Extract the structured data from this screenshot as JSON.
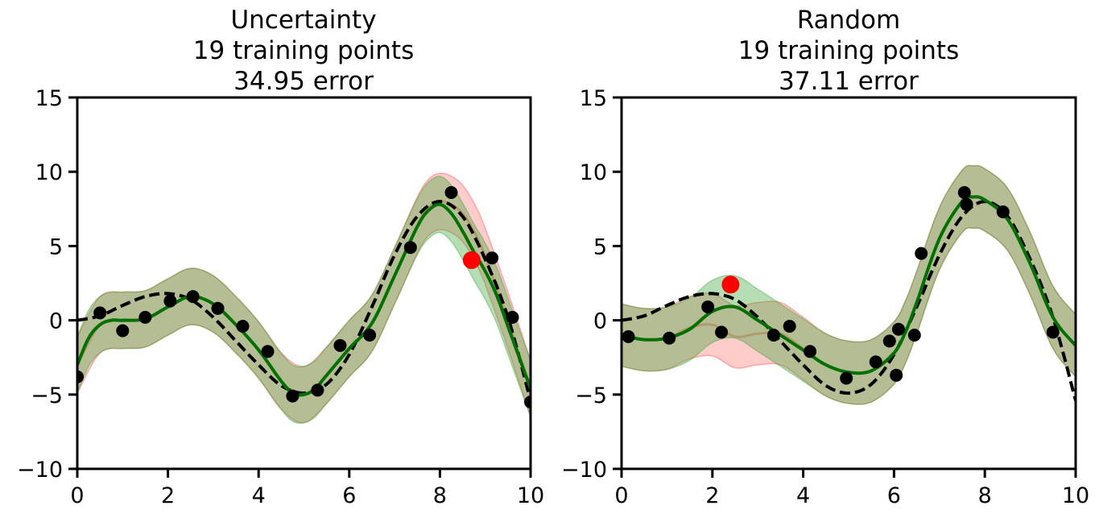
{
  "chart_data": [
    {
      "type": "line",
      "title": [
        "Uncertainty",
        "19 training points",
        "34.95 error"
      ],
      "xlim": [
        0,
        10
      ],
      "ylim": [
        -10,
        15
      ],
      "xticks": [
        0,
        2,
        4,
        6,
        8,
        10
      ],
      "yticks": [
        -10,
        -5,
        0,
        5,
        10,
        15
      ],
      "xtick_labels": [
        "0",
        "2",
        "4",
        "6",
        "8",
        "10"
      ],
      "ytick_labels": [
        "−10",
        "−5",
        "0",
        "5",
        "10",
        "15"
      ],
      "true_function": {
        "x": [
          0,
          0.5,
          1,
          1.5,
          2,
          2.5,
          3,
          3.5,
          4,
          4.5,
          5,
          5.5,
          6,
          6.5,
          7,
          7.5,
          8,
          8.5,
          9,
          9.5,
          10
        ],
        "y": [
          0,
          0.3,
          1.0,
          1.6,
          1.8,
          1.4,
          0.2,
          -1.4,
          -3.0,
          -4.4,
          -4.9,
          -4.3,
          -2.3,
          0.9,
          4.4,
          7.0,
          8.0,
          7.0,
          4.1,
          0.2,
          -5.4
        ]
      },
      "mean_current": {
        "x": [
          0,
          0.25,
          0.5,
          0.75,
          1,
          1.5,
          2,
          2.5,
          3,
          3.5,
          4,
          4.5,
          4.75,
          5,
          5.25,
          5.5,
          6,
          6.5,
          7,
          7.5,
          7.75,
          8,
          8.25,
          8.5,
          8.75,
          9,
          9.25,
          9.5,
          9.75,
          10
        ],
        "y": [
          -3.0,
          -1.2,
          -0.3,
          0.0,
          0.0,
          0.1,
          0.9,
          1.6,
          1.1,
          -0.3,
          -2.0,
          -4.1,
          -4.9,
          -5.0,
          -4.6,
          -3.7,
          -1.9,
          -0.2,
          3.0,
          6.3,
          7.4,
          7.8,
          7.2,
          6.0,
          4.6,
          3.3,
          1.7,
          -0.4,
          -2.5,
          -4.6
        ]
      },
      "band_current_halfwidth": 1.9,
      "mean_previous": {
        "x": [
          0,
          0.5,
          1,
          1.5,
          2,
          2.5,
          3,
          3.5,
          4,
          4.5,
          5,
          5.5,
          6,
          6.5,
          7,
          7.5,
          7.75,
          8,
          8.25,
          8.5,
          8.75,
          9,
          9.5,
          10
        ],
        "y": [
          -3.0,
          -0.3,
          0.0,
          0.1,
          0.9,
          1.6,
          1.1,
          -0.3,
          -2.0,
          -4.1,
          -5.0,
          -3.7,
          -1.9,
          -0.2,
          3.0,
          6.4,
          7.6,
          8.0,
          7.8,
          7.2,
          6.0,
          4.3,
          0.0,
          -4.6
        ]
      },
      "band_previous_halfwidth": 1.9,
      "points": {
        "x": [
          0.0,
          0.5,
          1.0,
          1.5,
          2.05,
          2.55,
          3.1,
          3.65,
          4.2,
          4.75,
          5.3,
          5.8,
          6.45,
          7.35,
          8.25,
          9.15,
          9.6,
          10.0
        ],
        "y": [
          -3.8,
          0.5,
          -0.7,
          0.2,
          1.3,
          1.6,
          0.8,
          -0.4,
          -2.1,
          -5.1,
          -4.7,
          -1.7,
          -1.0,
          4.9,
          8.6,
          4.2,
          0.2,
          -5.5
        ]
      },
      "new_point": {
        "x": 8.7,
        "y": 4.05
      },
      "colors": {
        "mean": "#007000",
        "band_current": "#2ca02c",
        "band_previous": "#ff3333",
        "true": "#000000",
        "points": "#000000",
        "new_point": "#ff0000"
      }
    },
    {
      "type": "line",
      "title": [
        "Random",
        "19 training points",
        "37.11 error"
      ],
      "xlim": [
        0,
        10
      ],
      "ylim": [
        -10,
        15
      ],
      "xticks": [
        0,
        2,
        4,
        6,
        8,
        10
      ],
      "yticks": [
        -10,
        -5,
        0,
        5,
        10,
        15
      ],
      "xtick_labels": [
        "0",
        "2",
        "4",
        "6",
        "8",
        "10"
      ],
      "ytick_labels": [
        "−10",
        "−5",
        "0",
        "5",
        "10",
        "15"
      ],
      "true_function": {
        "x": [
          0,
          0.5,
          1,
          1.5,
          2,
          2.5,
          3,
          3.5,
          4,
          4.5,
          5,
          5.5,
          6,
          6.5,
          7,
          7.5,
          8,
          8.5,
          9,
          9.5,
          10
        ],
        "y": [
          0,
          0.3,
          1.0,
          1.6,
          1.8,
          1.4,
          0.2,
          -1.4,
          -3.0,
          -4.4,
          -4.9,
          -4.3,
          -2.3,
          0.9,
          4.4,
          7.0,
          8.0,
          7.0,
          4.1,
          0.2,
          -5.4
        ]
      },
      "mean_current": {
        "x": [
          0,
          0.5,
          1,
          1.5,
          2,
          2.5,
          3,
          3.5,
          4,
          4.5,
          5,
          5.5,
          6,
          6.25,
          6.5,
          7,
          7.5,
          7.75,
          8,
          8.5,
          9,
          9.5,
          10
        ],
        "y": [
          -1.0,
          -1.3,
          -1.2,
          -0.6,
          0.6,
          0.9,
          0.0,
          -1.0,
          -2.0,
          -3.0,
          -3.5,
          -3.4,
          -2.2,
          -0.8,
          1.2,
          5.5,
          8.0,
          8.3,
          8.1,
          6.8,
          3.8,
          0.2,
          -1.7
        ]
      },
      "band_current_halfwidth": 2.1,
      "mean_previous": {
        "x": [
          0,
          0.5,
          1,
          1.5,
          2,
          2.5,
          3,
          3.5,
          4,
          4.5,
          5,
          5.5,
          6,
          6.25,
          6.5,
          7,
          7.5,
          7.75,
          8,
          8.5,
          9,
          9.5,
          10
        ],
        "y": [
          -1.0,
          -1.3,
          -1.2,
          -0.5,
          -0.3,
          -1.1,
          -0.9,
          -0.9,
          -1.9,
          -3.0,
          -3.5,
          -3.4,
          -2.2,
          -0.8,
          1.2,
          5.5,
          8.0,
          8.3,
          8.1,
          6.8,
          3.8,
          0.2,
          -1.7
        ]
      },
      "band_previous_halfwidth": 2.1,
      "points": {
        "x": [
          0.15,
          1.05,
          1.9,
          2.2,
          3.35,
          3.7,
          4.15,
          4.95,
          5.6,
          5.9,
          6.05,
          6.1,
          6.45,
          6.6,
          7.55,
          7.6,
          8.4,
          9.5
        ],
        "y": [
          -1.1,
          -1.2,
          0.9,
          -0.8,
          -1.0,
          -0.4,
          -2.1,
          -3.9,
          -2.8,
          -1.4,
          -3.7,
          -0.6,
          -1.0,
          4.5,
          8.6,
          7.8,
          7.3,
          -0.8
        ]
      },
      "new_point": {
        "x": 2.4,
        "y": 2.4
      },
      "colors": {
        "mean": "#007000",
        "band_current": "#2ca02c",
        "band_previous": "#ff3333",
        "true": "#000000",
        "points": "#000000",
        "new_point": "#ff0000"
      }
    }
  ]
}
